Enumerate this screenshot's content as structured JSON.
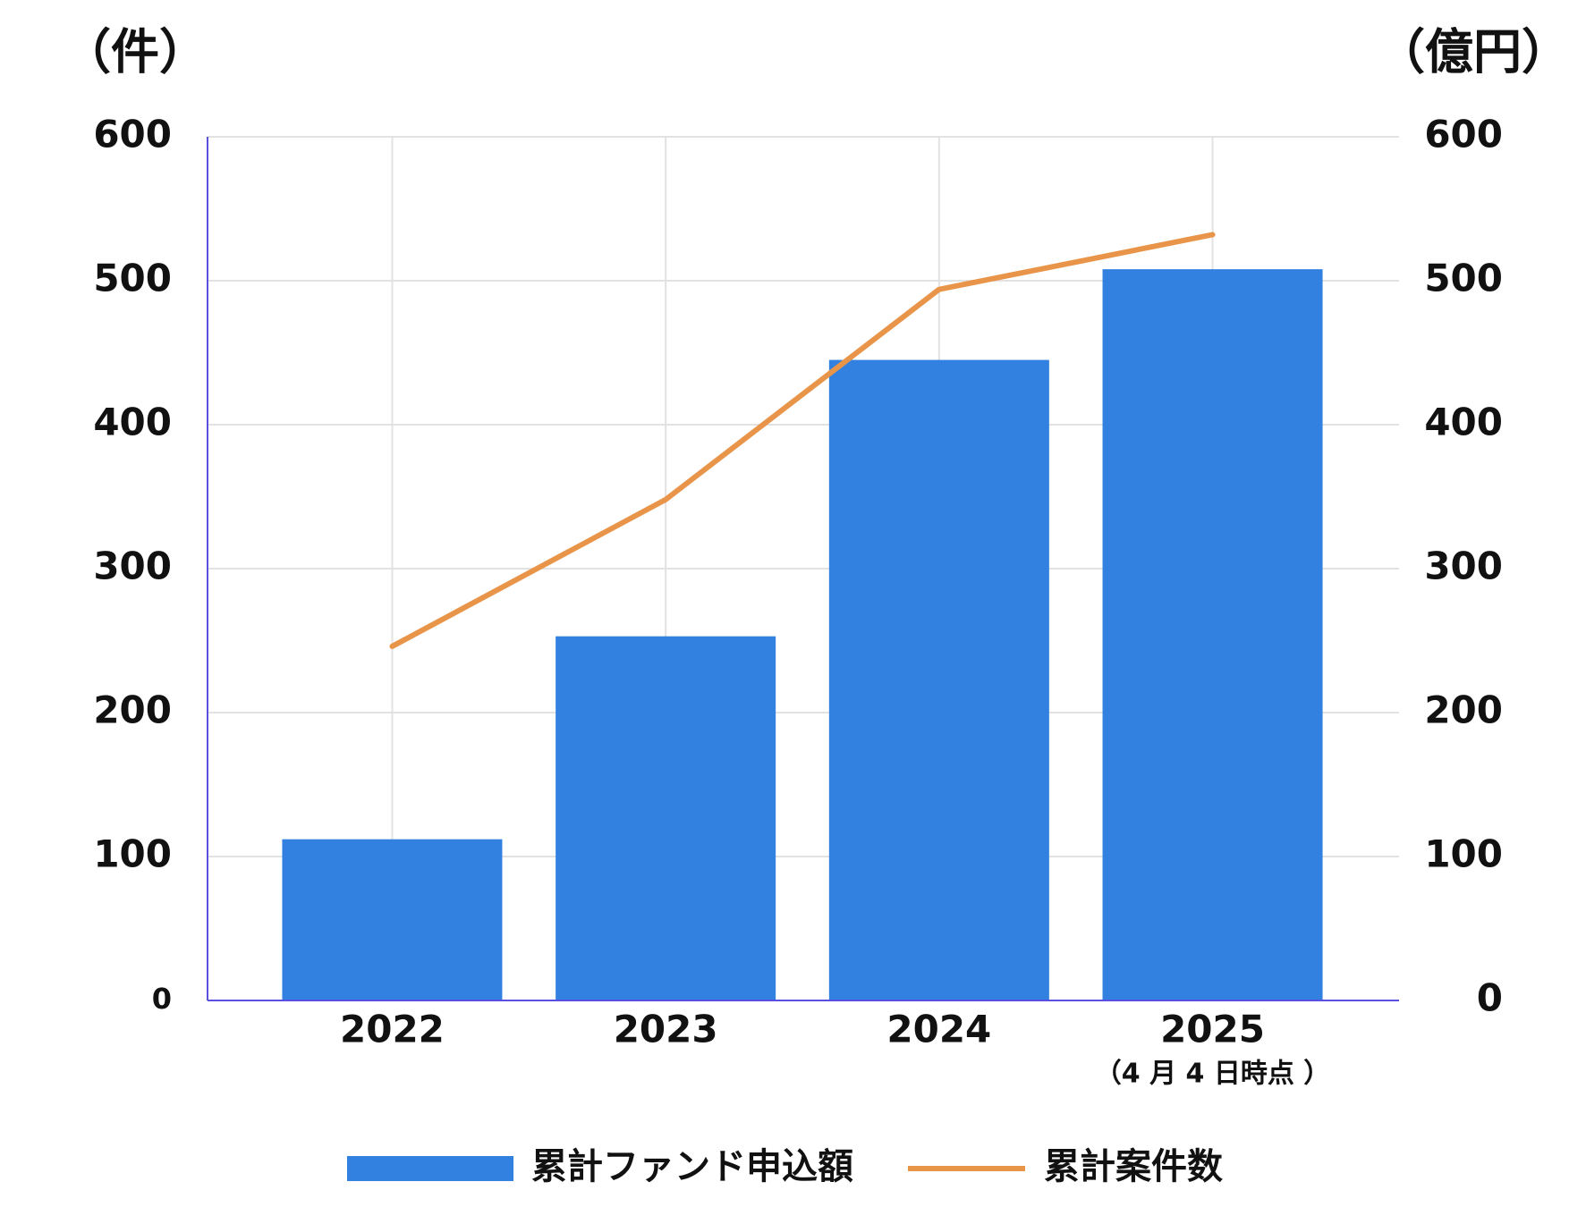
{
  "chart_data": {
    "type": "combo",
    "y_label": "（件）",
    "y2_label": "（億円）",
    "categories": [
      "2022",
      "2023",
      "2024",
      "2025"
    ],
    "annotation": "（4 月 4 日時点 ）",
    "series": [
      {
        "name": "累計ファンド申込額",
        "type": "bar",
        "axis": "y2",
        "color": "#3280e0",
        "values": [
          112,
          253,
          445,
          508
        ]
      },
      {
        "name": "累計案件数",
        "type": "line",
        "color": "#e8954a",
        "values": [
          246,
          348,
          494,
          532
        ]
      }
    ],
    "ylim": [
      0,
      600
    ],
    "yticks": [
      0,
      100,
      200,
      300,
      400,
      500,
      600
    ],
    "y2lim": [
      0,
      600
    ],
    "y2ticks": [
      0,
      100,
      200,
      300,
      400,
      500,
      600
    ],
    "grid": true,
    "legend": "bottom"
  }
}
